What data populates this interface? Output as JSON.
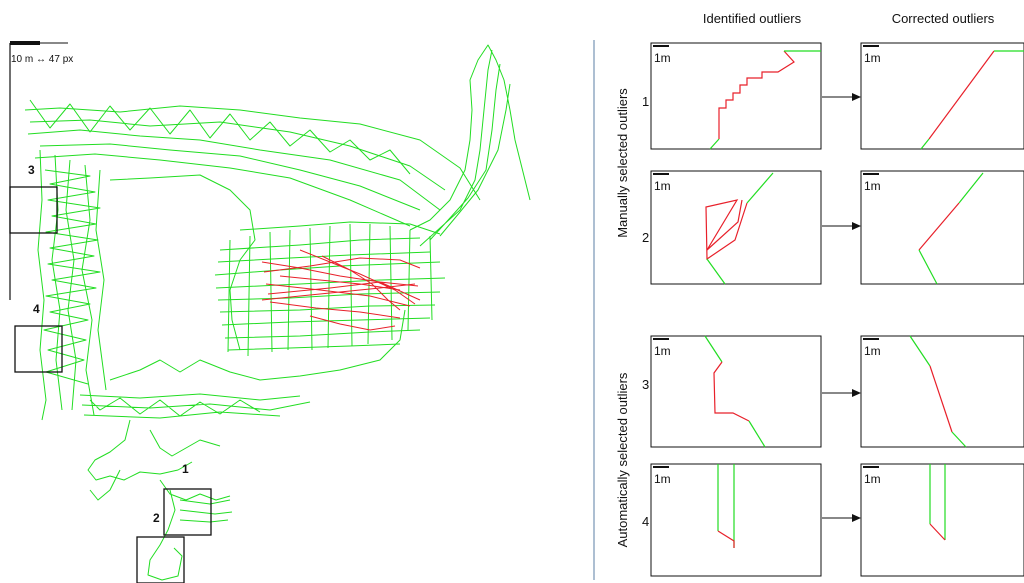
{
  "map": {
    "scale_label": "10 m ↔ 47 px",
    "markers": [
      "3",
      "4",
      "1",
      "2"
    ]
  },
  "panels": {
    "col_headers": [
      "Identified outliers",
      "Corrected outliers"
    ],
    "group_labels": [
      "Manually selected outliers",
      "Automatically selected outliers"
    ],
    "row_labels": [
      "1",
      "2",
      "3",
      "4"
    ],
    "panel_scale": "1m"
  },
  "colors": {
    "track": "#22dd22",
    "outlier": "#e8202a",
    "frame": "#111111",
    "divider": "#5b7fa6"
  }
}
